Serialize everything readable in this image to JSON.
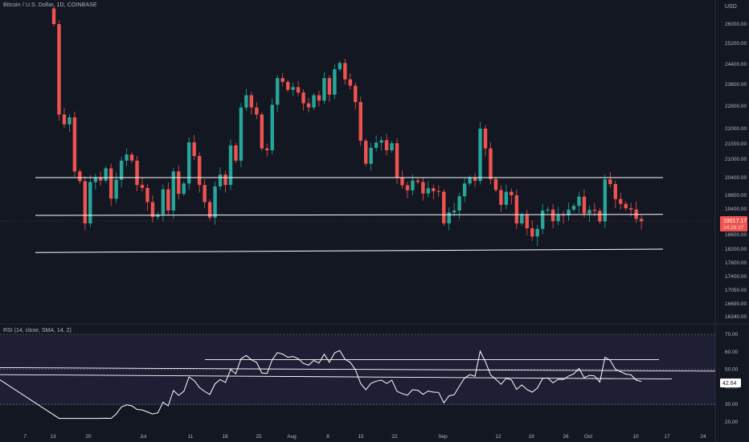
{
  "symbol": "Bitcoin / U.S. Dollar, 1D, COINBASE",
  "currency": "USD",
  "price_label": "19017.17",
  "price_countdown": "14:26:17",
  "rsi_legend": "RSI (14, close, SMA, 14, 2)",
  "rsi_label": "42.64",
  "colors": {
    "background": "#131722",
    "up": "#26a69a",
    "down": "#ef5350",
    "axis_text": "#b2b5be",
    "rsi_band": "#1e1e34",
    "line": "#ffffff"
  },
  "chart_data": [
    {
      "type": "candlestick",
      "y_axis_ticks": [
        26000,
        25200,
        24400,
        23600,
        22800,
        22000,
        21500,
        21000,
        20400,
        19800,
        19400,
        19000,
        18600,
        18200,
        17800,
        17400,
        17050,
        16690,
        16340
      ],
      "y_axis_tick_labels": [
        "26000.00",
        "25200.00",
        "24400.00",
        "23600.00",
        "22800.00",
        "22000.00",
        "21500.00",
        "21000.00",
        "20400.00",
        "19800.00",
        "19400.00",
        "19000.00",
        "18600.00",
        "18200.00",
        "17800.00",
        "17400.00",
        "17050.00",
        "16690.00",
        "16340.00"
      ],
      "x_axis_labels": [
        "7",
        "13",
        "20",
        "Jul",
        "11",
        "18",
        "25",
        "Aug",
        "8",
        "15",
        "22",
        "Sep",
        "12",
        "19",
        "26",
        "Oct",
        "10",
        "17",
        "24"
      ],
      "last_price": 19017.17,
      "horizontal_lines": [
        {
          "from": 20400,
          "to": 20400
        },
        {
          "from": 19200,
          "to": 19230
        },
        {
          "from": 18100,
          "to": 18200
        }
      ],
      "closes": [
        26000,
        22500,
        22150,
        22400,
        20600,
        20280,
        18950,
        20250,
        20400,
        20300,
        20700,
        19700,
        20330,
        20950,
        21150,
        20950,
        20150,
        20050,
        19600,
        19150,
        19230,
        20000,
        19350,
        20600,
        19850,
        20200,
        21550,
        21100,
        20150,
        19600,
        19130,
        20100,
        20500,
        20150,
        21450,
        20950,
        22750,
        23200,
        22750,
        22500,
        21350,
        21290,
        22850,
        23850,
        23700,
        23400,
        23500,
        23300,
        22900,
        22750,
        23200,
        23000,
        23850,
        23220,
        24200,
        24450,
        23800,
        23550,
        22950,
        21600,
        20850,
        21370,
        21540,
        21620,
        21290,
        21520,
        20400,
        20140,
        19970,
        20300,
        20250,
        19860,
        20040,
        19940,
        19920,
        18950,
        19290,
        19350,
        19770,
        20200,
        20390,
        20290,
        22000,
        21350,
        20350,
        19980,
        19520,
        19920,
        19800,
        18950,
        19220,
        18800,
        18550,
        18780,
        19350,
        19380,
        19020,
        19220,
        19200,
        19380,
        19490,
        19760,
        19260,
        19370,
        19340,
        19010,
        20340,
        20180,
        19690,
        19550,
        19420,
        19380,
        19090,
        19017
      ]
    },
    {
      "type": "line",
      "name": "RSI",
      "y_axis_ticks": [
        70,
        60,
        50,
        40,
        30,
        20
      ],
      "y_axis_tick_labels": [
        "70.00",
        "60.00",
        "50.00",
        "40.00",
        "30.00",
        "20.00"
      ],
      "band": [
        30,
        70
      ],
      "last_value": 42.64
    }
  ]
}
